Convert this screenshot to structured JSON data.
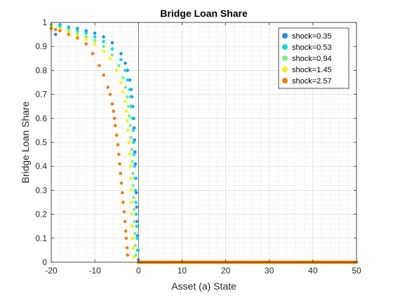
{
  "chart_data": {
    "type": "scatter",
    "title": "Bridge Loan Share",
    "xlabel": "Asset (a) State",
    "ylabel": "Bridge Loan Share",
    "xlim": [
      -20,
      50
    ],
    "ylim": [
      0,
      1
    ],
    "xticks": [
      -20,
      -10,
      0,
      10,
      20,
      30,
      40,
      50
    ],
    "xtick_labels": [
      "-20",
      "-10",
      "0",
      "10",
      "20",
      "30",
      "40",
      "50"
    ],
    "yticks": [
      0,
      0.1,
      0.2,
      0.3,
      0.4,
      0.5,
      0.6,
      0.7,
      0.8,
      0.9,
      1
    ],
    "ytick_labels": [
      "0",
      "0.1",
      "0.2",
      "0.3",
      "0.4",
      "0.5",
      "0.6",
      "0.7",
      "0.8",
      "0.9",
      "1"
    ],
    "grid": true,
    "minor_grid": true,
    "legend_position": "top-right",
    "vertical_reference_line_x": 0,
    "series": [
      {
        "name": "shock=0.35",
        "color": "#1f8ef1",
        "x": [
          -19.0,
          -18.0,
          -16.0,
          -14.0,
          -12.0,
          -10.0,
          -8.0,
          -6.0,
          -4.0,
          -3.0,
          -2.5,
          -2.0,
          -1.7,
          -1.5,
          -1.3,
          -1.1,
          -1.0,
          -0.9,
          -0.8,
          -0.7,
          -0.6,
          -0.5,
          -0.4,
          -0.3,
          -0.2,
          -0.1,
          0.0,
          5.0,
          10.0,
          20.0,
          30.0,
          40.0,
          50.0
        ],
        "y": [
          0.95,
          0.99,
          0.98,
          0.975,
          0.965,
          0.955,
          0.94,
          0.915,
          0.87,
          0.83,
          0.8,
          0.76,
          0.72,
          0.69,
          0.65,
          0.6,
          0.56,
          0.51,
          0.46,
          0.41,
          0.35,
          0.29,
          0.23,
          0.17,
          0.11,
          0.05,
          0.01,
          0.0,
          0.0,
          0.0,
          0.0,
          0.0,
          0.0
        ]
      },
      {
        "name": "shock=0.53",
        "color": "#00e0e0",
        "x": [
          -20.0,
          -18.0,
          -16.0,
          -14.0,
          -12.0,
          -10.0,
          -8.0,
          -6.0,
          -4.0,
          -3.0,
          -2.5,
          -2.0,
          -1.8,
          -1.6,
          -1.4,
          -1.2,
          -1.1,
          -1.0,
          -0.9,
          -0.8,
          -0.7,
          -0.6,
          -0.5,
          -0.4,
          -0.3,
          -0.2,
          0.0,
          5.0,
          10.0,
          20.0,
          30.0,
          40.0,
          50.0
        ],
        "y": [
          0.99,
          0.985,
          0.975,
          0.965,
          0.955,
          0.94,
          0.92,
          0.89,
          0.845,
          0.8,
          0.76,
          0.72,
          0.69,
          0.65,
          0.6,
          0.55,
          0.5,
          0.45,
          0.4,
          0.35,
          0.3,
          0.25,
          0.2,
          0.15,
          0.1,
          0.05,
          0.0,
          0.0,
          0.0,
          0.0,
          0.0,
          0.0,
          0.0
        ]
      },
      {
        "name": "shock=0.94",
        "color": "#7ef07e",
        "x": [
          -20.0,
          -18.0,
          -16.0,
          -14.0,
          -12.0,
          -10.0,
          -8.0,
          -6.0,
          -4.5,
          -3.5,
          -3.0,
          -2.6,
          -2.3,
          -2.1,
          -1.9,
          -1.7,
          -1.5,
          -1.4,
          -1.3,
          -1.2,
          -1.1,
          -1.0,
          -0.9,
          -0.8,
          -0.7,
          -0.6,
          0.0,
          5.0,
          10.0,
          20.0,
          30.0,
          40.0,
          50.0
        ],
        "y": [
          0.985,
          0.975,
          0.965,
          0.955,
          0.94,
          0.925,
          0.9,
          0.865,
          0.82,
          0.77,
          0.73,
          0.69,
          0.65,
          0.61,
          0.57,
          0.52,
          0.47,
          0.42,
          0.37,
          0.32,
          0.27,
          0.22,
          0.17,
          0.12,
          0.07,
          0.03,
          0.0,
          0.0,
          0.0,
          0.0,
          0.0,
          0.0,
          0.0
        ]
      },
      {
        "name": "shock=1.45",
        "color": "#f5f500",
        "x": [
          -20.0,
          -18.0,
          -16.0,
          -14.0,
          -12.0,
          -10.0,
          -8.0,
          -6.5,
          -5.0,
          -4.0,
          -3.5,
          -3.1,
          -2.8,
          -2.6,
          -2.4,
          -2.2,
          -2.0,
          -1.9,
          -1.8,
          -1.7,
          -1.6,
          -1.5,
          -1.4,
          -1.3,
          -1.2,
          -1.1,
          0.0,
          5.0,
          10.0,
          20.0,
          30.0,
          40.0,
          50.0
        ],
        "y": [
          0.98,
          0.97,
          0.96,
          0.945,
          0.93,
          0.91,
          0.88,
          0.85,
          0.8,
          0.75,
          0.71,
          0.67,
          0.63,
          0.59,
          0.55,
          0.5,
          0.45,
          0.4,
          0.35,
          0.3,
          0.25,
          0.2,
          0.15,
          0.1,
          0.06,
          0.02,
          0.0,
          0.0,
          0.0,
          0.0,
          0.0,
          0.0,
          0.0
        ]
      },
      {
        "name": "shock=2.57",
        "color": "#f57d00",
        "x": [
          -20.0,
          -19.0,
          -18.0,
          -16.0,
          -14.0,
          -12.0,
          -10.5,
          -9.0,
          -8.0,
          -7.0,
          -6.5,
          -6.0,
          -5.7,
          -5.5,
          -5.3,
          -5.0,
          -4.7,
          -4.5,
          -4.3,
          -4.1,
          -3.9,
          -3.7,
          -3.5,
          -3.3,
          -3.1,
          -2.9,
          -2.8,
          -2.6,
          -2.5,
          0.0,
          5.0,
          10.0,
          20.0,
          30.0,
          40.0,
          50.0
        ],
        "y": [
          0.975,
          0.97,
          0.965,
          0.95,
          0.935,
          0.91,
          0.87,
          0.82,
          0.78,
          0.73,
          0.7,
          0.66,
          0.63,
          0.6,
          0.57,
          0.53,
          0.49,
          0.45,
          0.41,
          0.37,
          0.33,
          0.29,
          0.25,
          0.21,
          0.17,
          0.13,
          0.1,
          0.06,
          0.03,
          0.0,
          0.0,
          0.0,
          0.0,
          0.0,
          0.0,
          0.0
        ]
      }
    ]
  }
}
